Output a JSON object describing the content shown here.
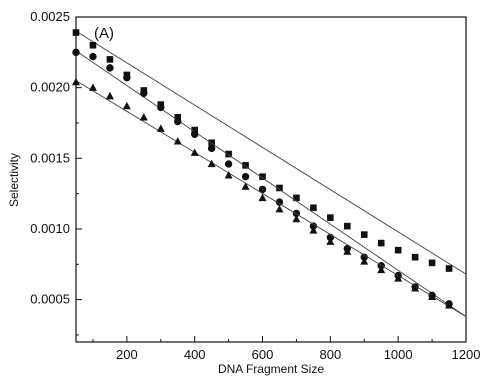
{
  "chart_data": {
    "type": "scatter",
    "title": "",
    "panel_label": "(A)",
    "xlabel": "DNA Fragment Size",
    "ylabel": "Selectivity",
    "xlim": [
      50,
      1200
    ],
    "ylim": [
      0.0002,
      0.0025
    ],
    "xticks": [
      200,
      400,
      600,
      800,
      1000,
      1200
    ],
    "xtick_labels": [
      "200",
      "400",
      "600",
      "800",
      "1000",
      "1200"
    ],
    "yticks": [
      0.0005,
      0.001,
      0.0015,
      0.002,
      0.0025
    ],
    "ytick_labels": [
      "0.0005",
      "0.0010",
      "0.0015",
      "0.0020",
      "0.0025"
    ],
    "grid": false,
    "legend": "none",
    "x": [
      50,
      100,
      150,
      200,
      250,
      300,
      350,
      400,
      450,
      500,
      550,
      600,
      650,
      700,
      750,
      800,
      850,
      900,
      950,
      1000,
      1050,
      1100,
      1150
    ],
    "series": [
      {
        "marker": "square",
        "color": "#111111",
        "values": [
          0.00239,
          0.0023,
          0.0022,
          0.00209,
          0.00198,
          0.00188,
          0.00179,
          0.0017,
          0.00161,
          0.00153,
          0.00145,
          0.00137,
          0.00129,
          0.00122,
          0.00115,
          0.00108,
          0.00102,
          0.00096,
          0.0009,
          0.00085,
          0.0008,
          0.00076,
          0.00072
        ],
        "fit": [
          [
            50,
            0.0024
          ],
          [
            1200,
            0.00068
          ]
        ]
      },
      {
        "marker": "circle",
        "color": "#111111",
        "values": [
          0.00225,
          0.00222,
          0.00214,
          0.00207,
          0.00196,
          0.00186,
          0.00176,
          0.00167,
          0.00157,
          0.00146,
          0.00137,
          0.00128,
          0.00119,
          0.00111,
          0.00102,
          0.00094,
          0.00086,
          0.0008,
          0.00074,
          0.00067,
          0.00059,
          0.00053,
          0.00047
        ],
        "fit": [
          [
            50,
            0.00226
          ],
          [
            1200,
            0.00038
          ]
        ]
      },
      {
        "marker": "triangle",
        "color": "#111111",
        "values": [
          0.00204,
          0.002,
          0.00194,
          0.00187,
          0.00179,
          0.00171,
          0.00162,
          0.00154,
          0.00146,
          0.00138,
          0.0013,
          0.00122,
          0.00114,
          0.00107,
          0.00099,
          0.00091,
          0.00084,
          0.00077,
          0.00071,
          0.00065,
          0.00058,
          0.00052,
          0.00046
        ],
        "fit": [
          [
            50,
            0.00205
          ],
          [
            1200,
            0.00038
          ]
        ]
      }
    ]
  }
}
